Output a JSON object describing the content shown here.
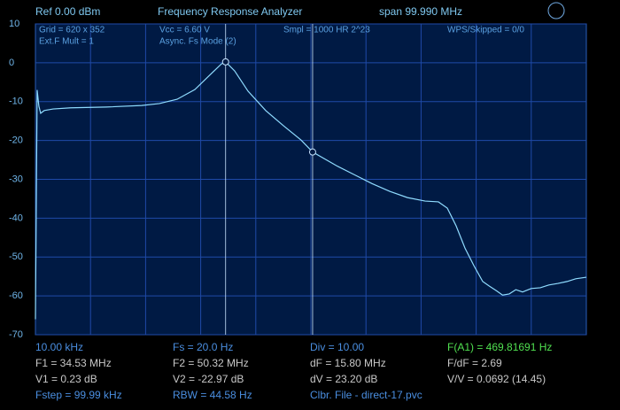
{
  "header": {
    "ref": "Ref  0.00 dBm",
    "title": "Frequency Response Analyzer",
    "span": "span 99.990 MHz"
  },
  "info": [
    "Grid = 620 x 352",
    "Ext.F Mult = 1",
    "Vcc = 6.60 V",
    "Async. Fs Mode (2)",
    "Smpl = 1000 HR 2^23",
    "WPS/Skipped  = 0/0"
  ],
  "readouts": [
    [
      "10.00 kHz",
      "Fs = 20.0 Hz",
      "Div = 10.00",
      "F(A1) = 469.81691 Hz"
    ],
    [
      "F1 = 34.53 MHz",
      "F2 = 50.32 MHz",
      "dF = 15.80 MHz",
      "F/dF = 2.69"
    ],
    [
      "V1 = 0.23 dB",
      "V2 = -22.97 dB",
      "dV = 23.20 dB",
      "V/V = 0.0692 (14.45)"
    ],
    [
      "Fstep = 99.99 kHz",
      "RBW = 44.58 Hz",
      "Clbr. File - direct-17.pvc"
    ]
  ],
  "chart_data": {
    "type": "line",
    "x": [
      0.01,
      0.32,
      0.64,
      0.96,
      1.61,
      3.22,
      6.43,
      12.86,
      19.29,
      22.51,
      25.72,
      28.94,
      32.15,
      33.76,
      34.53,
      36.17,
      38.59,
      41.8,
      45.02,
      48.23,
      50.32,
      54.66,
      57.88,
      61.09,
      64.31,
      67.52,
      70.74,
      73.15,
      74.76,
      76.37,
      77.97,
      79.58,
      81.19,
      82.4,
      83.6,
      84.8,
      86.01,
      87.2,
      88.42,
      90.0,
      91.64,
      93.2,
      94.86,
      96.5,
      98.07,
      100
    ],
    "series": [
      {
        "color": "#8fdcff",
        "values": [
          -66,
          -7,
          -11.2,
          -13,
          -12.3,
          -11.9,
          -11.6,
          -11.4,
          -11,
          -10.5,
          -9.4,
          -6.9,
          -2.5,
          -0.3,
          0.23,
          -2.1,
          -7.3,
          -12.3,
          -16.2,
          -19.9,
          -22.97,
          -26.5,
          -28.8,
          -31.1,
          -33.1,
          -34.7,
          -35.6,
          -35.8,
          -37.4,
          -42,
          -47.7,
          -52.2,
          -56.3,
          -57.5,
          -58.6,
          -59.8,
          -59.5,
          -58.4,
          -59,
          -58.1,
          -57.9,
          -57.2,
          -56.8,
          -56.3,
          -55.6,
          -55.2
        ]
      }
    ],
    "markers": [
      {
        "x": 34.53,
        "y": 0.23
      },
      {
        "x": 50.32,
        "y": -22.97
      }
    ],
    "xlim": [
      0.01,
      100
    ],
    "ylim": [
      -70,
      10
    ],
    "yticks": [
      -70,
      -60,
      -50,
      -40,
      -30,
      -20,
      -10,
      0,
      10
    ],
    "grid": true
  }
}
